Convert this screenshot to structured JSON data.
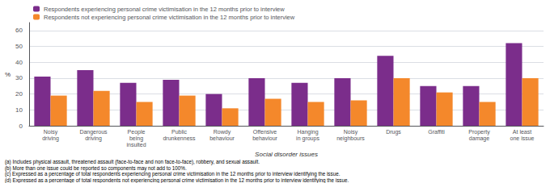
{
  "chart_data": {
    "type": "bar",
    "categories": [
      "Noisy\ndriving",
      "Dangerous\ndriving",
      "People\nbeing\ninsulted",
      "Public\ndrunkenness",
      "Rowdy\nbehaviour",
      "Offensive\nbehaviour",
      "Hanging\nin groups",
      "Noisy\nneighbours",
      "Drugs",
      "Graffiti",
      "Property\ndamage",
      "At least\none issue"
    ],
    "series": [
      {
        "name": "Respondents experiencing personal crime victimisation in the 12 months prior to interview",
        "color": "#7B2D8B",
        "values": [
          31,
          35,
          27,
          29,
          20,
          30,
          27,
          30,
          44,
          25,
          25,
          52
        ]
      },
      {
        "name": "Respondents not experiencing personal crime victimisation in the 12 months prior to interview",
        "color": "#F4882B",
        "values": [
          19,
          22,
          15,
          19,
          11,
          17,
          15,
          16,
          30,
          21,
          15,
          30
        ]
      }
    ],
    "xlabel": "Social disorder issues",
    "ylabel": "%",
    "ylim": [
      0,
      65
    ],
    "yticks": [
      0,
      10,
      20,
      30,
      40,
      50,
      60
    ],
    "grid": true,
    "legend": "upper left",
    "annotations": [
      "(a) Includes physical assault, threatened assault (face-to-face and non face-to-face), robbery, and sexual assault.",
      "(b) More than one issue could be reported so components may not add to 100%.",
      "(c) Expressed as a percentage of total respondents experiencing personal crime victimisation in the 12 months prior to interview identifying the issue.",
      "(d) Expressed as a percentage of total respondents not experiencing personal crime victimisation in the 12 months prior to interview identifying the issue."
    ]
  }
}
